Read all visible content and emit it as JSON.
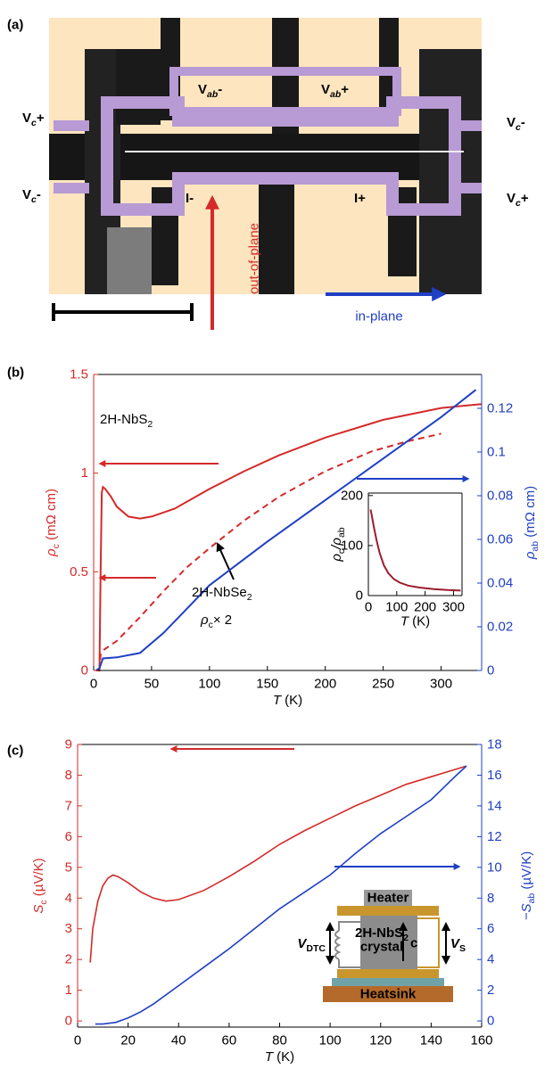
{
  "panel_labels": [
    "(a)",
    "(b)",
    "(c)"
  ],
  "panel_a": {
    "contacts": [
      [
        {
          "text": "V"
        },
        {
          "text": "c",
          "sub": true,
          "italic": true
        },
        {
          "text": "+"
        }
      ],
      [
        {
          "text": "V"
        },
        {
          "text": "c",
          "sub": true,
          "italic": true
        },
        {
          "text": "-"
        }
      ],
      [
        {
          "text": "V"
        },
        {
          "text": "ab",
          "sub": true,
          "italic": true
        },
        {
          "text": "-"
        }
      ],
      [
        {
          "text": "V"
        },
        {
          "text": "ab",
          "sub": true,
          "italic": true
        },
        {
          "text": "+"
        }
      ],
      [
        {
          "text": "I-"
        }
      ],
      [
        {
          "text": "I+"
        }
      ],
      [
        {
          "text": "V"
        },
        {
          "text": "c",
          "sub": true,
          "italic": true
        },
        {
          "text": "-"
        }
      ],
      [
        {
          "text": "V"
        },
        {
          "text": "c",
          "sub": true,
          "italic": true
        },
        {
          "text": "+"
        }
      ]
    ],
    "out_of_plane": "out-of-plane",
    "in_plane": "in-plane"
  },
  "chart_data": [
    {
      "type": "line",
      "xlabel": [
        {
          "text": "T",
          "italic": true
        },
        {
          "text": " (K)"
        }
      ],
      "ylabel": [
        {
          "text": "ρ",
          "italic": true
        },
        {
          "text": "c",
          "sub": true
        },
        {
          "text": " (mΩ cm)"
        }
      ],
      "y2label": [
        {
          "text": "ρ",
          "italic": true
        },
        {
          "text": "ab",
          "sub": true
        },
        {
          "text": " (mΩ cm)"
        }
      ],
      "xlim": [
        0,
        335
      ],
      "xticks": [
        0,
        50,
        100,
        150,
        200,
        250,
        300
      ],
      "ylim": [
        0,
        1.5
      ],
      "yticks": [
        0,
        0.5,
        1,
        1.5
      ],
      "y2lim": [
        0,
        0.1355
      ],
      "y2ticks": [
        0,
        0.02,
        0.04,
        0.06,
        0.08,
        0.1,
        0.12
      ],
      "series": [
        {
          "color": "#d42a2a",
          "x": [
            2,
            5,
            6,
            7,
            8,
            10,
            15,
            20,
            30,
            40,
            50,
            70,
            100,
            130,
            160,
            200,
            250,
            300,
            335
          ],
          "values": [
            0,
            0,
            0.5,
            0.9,
            0.93,
            0.92,
            0.88,
            0.83,
            0.78,
            0.77,
            0.78,
            0.82,
            0.92,
            1.01,
            1.09,
            1.18,
            1.27,
            1.33,
            1.35
          ]
        },
        {
          "color": "#d42a2a",
          "dash": true,
          "x": [
            5,
            6,
            8,
            10,
            20,
            40,
            60,
            80,
            100,
            130,
            160,
            200,
            240,
            270,
            300
          ],
          "values": [
            0,
            0.08,
            0.1,
            0.11,
            0.15,
            0.27,
            0.4,
            0.52,
            0.62,
            0.76,
            0.88,
            1.01,
            1.11,
            1.16,
            1.2
          ]
        },
        {
          "color": "#1f3fc4",
          "axis": "y2",
          "x": [
            2,
            5,
            7,
            8,
            20,
            40,
            60,
            80,
            100,
            150,
            200,
            250,
            300,
            330
          ],
          "values": [
            0,
            0.001,
            0.004,
            0.0055,
            0.006,
            0.008,
            0.017,
            0.028,
            0.039,
            0.059,
            0.078,
            0.097,
            0.116,
            0.1285
          ]
        }
      ],
      "annotations": {
        "material": [
          {
            "text": "2H-NbS"
          },
          {
            "text": "2",
            "sub": true
          }
        ],
        "compare": [
          {
            "text": "2H-NbSe"
          },
          {
            "text": "2",
            "sub": true
          }
        ],
        "scale": [
          {
            "text": "ρ",
            "italic": true
          },
          {
            "text": "c",
            "sub": true
          },
          {
            "text": "× 2"
          }
        ]
      }
    },
    {
      "type": "line",
      "xlabel": [
        {
          "text": "T",
          "italic": true
        },
        {
          "text": " (K)"
        }
      ],
      "ylabel": [
        {
          "text": "ρ",
          "italic": true
        },
        {
          "text": "c",
          "sub": true
        },
        {
          "text": "/ρ",
          "italic": true
        },
        {
          "text": "ab",
          "sub": true
        }
      ],
      "xlim": [
        0,
        330
      ],
      "xticks": [
        0,
        100,
        200,
        300
      ],
      "ylim": [
        0,
        205
      ],
      "yticks": [
        0,
        100,
        200
      ],
      "series": [
        {
          "color": "#9b1c2e",
          "x": [
            8,
            12,
            20,
            30,
            40,
            55,
            70,
            90,
            110,
            140,
            180,
            230,
            280,
            325
          ],
          "values": [
            172,
            160,
            135,
            108,
            85,
            60,
            45,
            33,
            26,
            20,
            16,
            13,
            11,
            10
          ]
        }
      ]
    },
    {
      "type": "line",
      "xlabel": [
        {
          "text": "T",
          "italic": true
        },
        {
          "text": " (K)"
        }
      ],
      "ylabel": [
        {
          "text": "S",
          "italic": true
        },
        {
          "text": "c",
          "sub": true
        },
        {
          "text": " (µV/K)"
        }
      ],
      "y2label": [
        {
          "text": "−S",
          "italic": true
        },
        {
          "text": "ab",
          "sub": true
        },
        {
          "text": " (µV/K)"
        }
      ],
      "xlim": [
        0,
        160
      ],
      "xticks": [
        0,
        20,
        40,
        60,
        80,
        100,
        120,
        140,
        160
      ],
      "ylim": [
        -0.2,
        9
      ],
      "yticks": [
        0,
        1,
        2,
        3,
        4,
        5,
        6,
        7,
        8,
        9
      ],
      "y2lim": [
        -0.4,
        18
      ],
      "y2ticks": [
        0,
        2,
        4,
        6,
        8,
        10,
        12,
        14,
        16,
        18
      ],
      "series": [
        {
          "color": "#d42a2a",
          "x": [
            5,
            6,
            8,
            10,
            12,
            14,
            16,
            20,
            25,
            30,
            35,
            40,
            50,
            60,
            70,
            80,
            90,
            100,
            110,
            120,
            130,
            140,
            150,
            154
          ],
          "values": [
            1.9,
            3.0,
            3.9,
            4.4,
            4.65,
            4.75,
            4.7,
            4.5,
            4.2,
            4.0,
            3.9,
            3.95,
            4.25,
            4.7,
            5.2,
            5.75,
            6.2,
            6.6,
            7.0,
            7.35,
            7.7,
            7.95,
            8.2,
            8.3
          ]
        },
        {
          "color": "#1f3fc4",
          "axis": "y2",
          "x": [
            7,
            10,
            15,
            20,
            25,
            30,
            40,
            50,
            60,
            70,
            80,
            90,
            100,
            110,
            120,
            130,
            140,
            150,
            154
          ],
          "values": [
            -0.2,
            -0.2,
            -0.1,
            0.2,
            0.6,
            1.1,
            2.3,
            3.5,
            4.7,
            6.0,
            7.3,
            8.4,
            9.5,
            10.9,
            12.2,
            13.3,
            14.4,
            16.0,
            16.6
          ]
        }
      ],
      "schematic": {
        "heater": "Heater",
        "crystal": [
          {
            "text": "2H-NbS"
          },
          {
            "text": "2",
            "sub": true
          }
        ],
        "crystal_word": "crystal",
        "axis": "c",
        "v_dtc": [
          {
            "text": "V",
            "italic": true
          },
          {
            "text": "DTC",
            "sub": true
          }
        ],
        "v_s": [
          {
            "text": "V",
            "italic": true
          },
          {
            "text": "S",
            "sub": true
          }
        ],
        "heatsink": "Heatsink"
      }
    }
  ]
}
